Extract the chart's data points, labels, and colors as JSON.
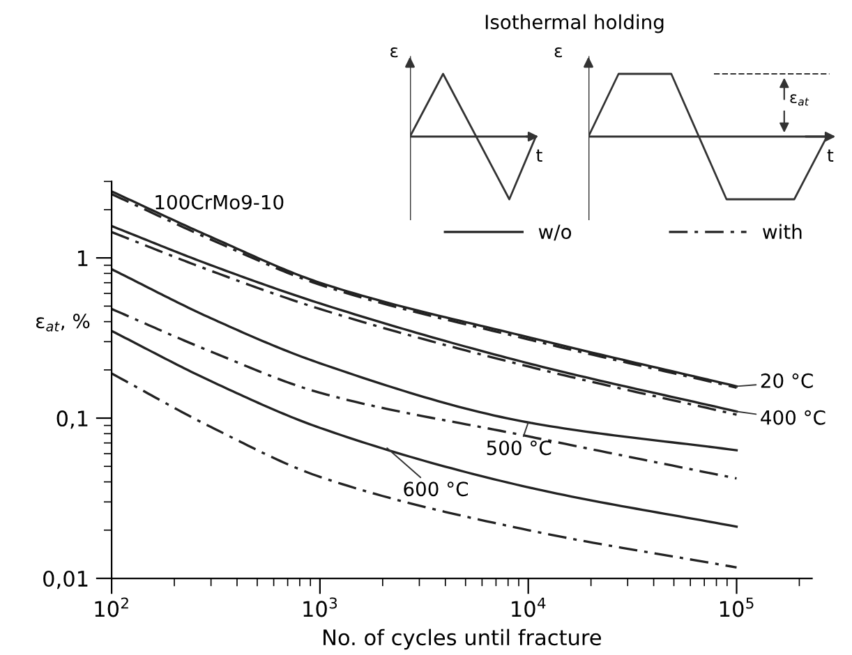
{
  "chart_data": {
    "type": "line",
    "xlabel": "No. of cycles until fracture",
    "ylabel": "ε$_{at}$, %",
    "legend_title": "Isothermal holding",
    "log": "xy",
    "xlim": [
      100,
      230000
    ],
    "ylim": [
      0.01,
      3
    ],
    "xticks": [
      {
        "value": 100,
        "label": "10$^{2}$"
      },
      {
        "value": 1000,
        "label": "10$^{3}$"
      },
      {
        "value": 10000,
        "label": "10$^{4}$"
      },
      {
        "value": 100000,
        "label": "10$^{5}$"
      }
    ],
    "yticks": [
      {
        "value": 0.01,
        "label": "0,01"
      },
      {
        "value": 0.1,
        "label": "0,1"
      },
      1
    ],
    "grid": false,
    "legend": "top right",
    "marker": "none",
    "x": [
      100,
      300,
      1000,
      10000,
      100000
    ],
    "series": [
      {
        "name": "w/o",
        "color": "#222222",
        "line_style": "solid",
        "values": [
          2.6,
          1.35,
          0.7,
          0.32,
          0.158
        ]
      },
      {
        "name": "with",
        "color": "#222222",
        "line_style": "dashdot",
        "values": [
          2.5,
          1.3,
          0.68,
          0.31,
          0.155
        ]
      },
      {
        "color": "#222222",
        "line_style": "solid",
        "values": [
          1.58,
          0.9,
          0.52,
          0.22,
          0.11
        ]
      },
      {
        "color": "#222222",
        "line_style": "dashdot",
        "values": [
          1.45,
          0.83,
          0.48,
          0.21,
          0.105
        ]
      },
      {
        "color": "#222222",
        "line_style": "solid",
        "values": [
          0.85,
          0.42,
          0.22,
          0.094,
          0.063
        ]
      },
      {
        "color": "#222222",
        "line_style": "dashdot",
        "values": [
          0.48,
          0.26,
          0.144,
          0.077,
          0.042
        ]
      },
      {
        "color": "#222222",
        "line_style": "solid",
        "values": [
          0.35,
          0.17,
          0.087,
          0.037,
          0.021
        ]
      },
      {
        "color": "#222222",
        "line_style": "dashdot",
        "values": [
          0.19,
          0.088,
          0.043,
          0.02,
          0.0117
        ]
      }
    ],
    "annotations": [
      "100CrMo9-10",
      {
        "text": "20 °C",
        "x": 100000,
        "y": 0.158
      },
      {
        "text": "400 °C",
        "x": 100000,
        "y": 0.11
      },
      {
        "text": "500 °C",
        "x": 10000,
        "y": 0.094
      },
      {
        "text": "600 °C",
        "x": 2100,
        "y": 0.065
      },
      "ε",
      "t",
      "ε",
      "t",
      "ε$_{at}$"
    ]
  }
}
